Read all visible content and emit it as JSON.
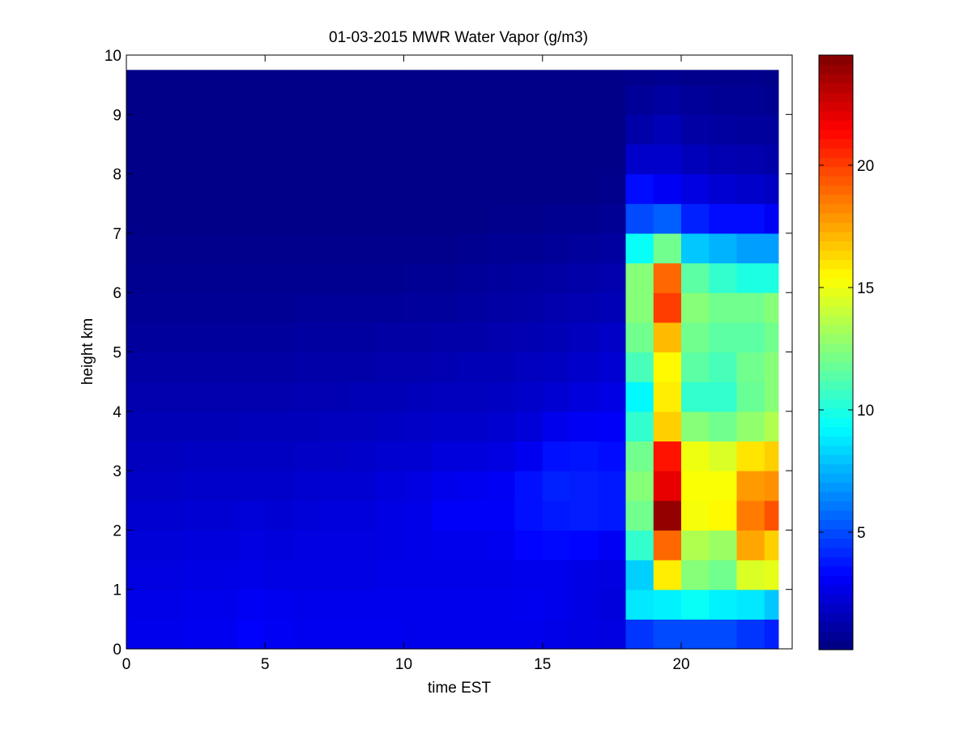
{
  "chart_data": {
    "type": "heatmap",
    "title": "01-03-2015 MWR Water Vapor (g/m3)",
    "xlabel": "time EST",
    "ylabel": "height km",
    "xlim": [
      0,
      24
    ],
    "ylim": [
      0,
      10
    ],
    "x_ticks": [
      "0",
      "5",
      "10",
      "15",
      "20"
    ],
    "y_ticks": [
      "0",
      "1",
      "2",
      "3",
      "4",
      "5",
      "6",
      "7",
      "8",
      "9",
      "10"
    ],
    "x_data_range": [
      0,
      23.5
    ],
    "y_data_range": [
      0,
      9.75
    ],
    "colorbar": {
      "colormap": "jet",
      "clim": [
        0.2,
        24.5
      ],
      "ticks": [
        "5",
        "10",
        "15",
        "20"
      ]
    },
    "time_hours": [
      0,
      1,
      2,
      3,
      4,
      5,
      6,
      7,
      8,
      9,
      10,
      11,
      12,
      13,
      14,
      15,
      16,
      17,
      18,
      19,
      20,
      21,
      22,
      23
    ],
    "height_km": [
      0,
      0.5,
      1,
      1.5,
      2,
      2.5,
      3,
      3.5,
      4,
      4.5,
      5,
      5.5,
      6,
      6.5,
      7,
      7.5,
      8,
      8.5,
      9,
      9.5
    ],
    "water_vapor_by_hour": [
      [
        2.8,
        2.7,
        2.5,
        2.3,
        2.1,
        1.9,
        1.7,
        1.5,
        1.3,
        1.1,
        0.9,
        0.7,
        0.6,
        0.5,
        0.4,
        0.4,
        0.4,
        0.4,
        0.4,
        0.4
      ],
      [
        2.8,
        2.7,
        2.5,
        2.3,
        2.1,
        1.9,
        1.7,
        1.5,
        1.3,
        1.1,
        0.9,
        0.7,
        0.6,
        0.5,
        0.4,
        0.4,
        0.4,
        0.4,
        0.4,
        0.4
      ],
      [
        2.9,
        2.8,
        2.6,
        2.4,
        2.2,
        2.0,
        1.8,
        1.5,
        1.3,
        1.1,
        0.9,
        0.7,
        0.6,
        0.5,
        0.4,
        0.4,
        0.4,
        0.4,
        0.4,
        0.4
      ],
      [
        2.9,
        2.8,
        2.6,
        2.4,
        2.2,
        2.0,
        1.8,
        1.5,
        1.3,
        1.1,
        0.9,
        0.7,
        0.6,
        0.5,
        0.4,
        0.4,
        0.4,
        0.4,
        0.4,
        0.4
      ],
      [
        3.2,
        3.0,
        2.7,
        2.5,
        2.3,
        2.0,
        1.8,
        1.6,
        1.3,
        1.1,
        0.9,
        0.7,
        0.6,
        0.5,
        0.4,
        0.4,
        0.4,
        0.4,
        0.4,
        0.4
      ],
      [
        3.0,
        2.9,
        2.6,
        2.4,
        2.2,
        2.0,
        1.8,
        1.6,
        1.3,
        1.1,
        0.9,
        0.7,
        0.6,
        0.5,
        0.4,
        0.4,
        0.4,
        0.4,
        0.4,
        0.4
      ],
      [
        2.9,
        2.8,
        2.6,
        2.5,
        2.3,
        2.1,
        1.9,
        1.6,
        1.4,
        1.2,
        1.0,
        0.8,
        0.6,
        0.5,
        0.4,
        0.4,
        0.4,
        0.4,
        0.4,
        0.4
      ],
      [
        2.9,
        2.8,
        2.6,
        2.5,
        2.4,
        2.2,
        1.9,
        1.7,
        1.4,
        1.2,
        1.0,
        0.8,
        0.6,
        0.5,
        0.4,
        0.4,
        0.4,
        0.4,
        0.4,
        0.4
      ],
      [
        2.9,
        2.8,
        2.6,
        2.5,
        2.4,
        2.2,
        2.0,
        1.7,
        1.5,
        1.2,
        1.0,
        0.8,
        0.6,
        0.5,
        0.4,
        0.4,
        0.4,
        0.4,
        0.4,
        0.4
      ],
      [
        2.9,
        2.8,
        2.7,
        2.6,
        2.6,
        2.4,
        2.1,
        1.8,
        1.5,
        1.3,
        1.1,
        0.8,
        0.6,
        0.5,
        0.4,
        0.4,
        0.4,
        0.4,
        0.4,
        0.4
      ],
      [
        2.8,
        2.8,
        2.7,
        2.7,
        2.7,
        2.5,
        2.2,
        1.9,
        1.6,
        1.3,
        1.1,
        0.9,
        0.7,
        0.5,
        0.4,
        0.4,
        0.4,
        0.4,
        0.4,
        0.4
      ],
      [
        2.8,
        2.8,
        2.7,
        2.8,
        3.1,
        2.8,
        2.4,
        2.0,
        1.7,
        1.4,
        1.2,
        0.9,
        0.7,
        0.5,
        0.4,
        0.4,
        0.4,
        0.4,
        0.4,
        0.4
      ],
      [
        2.8,
        2.8,
        2.7,
        2.8,
        3.1,
        2.9,
        2.4,
        2.0,
        1.7,
        1.5,
        1.2,
        1.0,
        0.8,
        0.6,
        0.4,
        0.4,
        0.4,
        0.4,
        0.4,
        0.4
      ],
      [
        2.8,
        2.8,
        2.7,
        2.9,
        3.1,
        3.0,
        2.5,
        2.1,
        1.8,
        1.5,
        1.3,
        1.1,
        0.9,
        0.7,
        0.5,
        0.4,
        0.4,
        0.4,
        0.4,
        0.4
      ],
      [
        2.8,
        2.9,
        2.8,
        3.3,
        3.6,
        3.6,
        2.9,
        2.3,
        2.0,
        1.7,
        1.4,
        1.2,
        1.0,
        0.7,
        0.5,
        0.4,
        0.4,
        0.4,
        0.4,
        0.4
      ],
      [
        2.7,
        2.8,
        2.8,
        3.4,
        3.8,
        4.0,
        3.6,
        2.8,
        2.2,
        1.8,
        1.5,
        1.3,
        1.1,
        0.8,
        0.6,
        0.4,
        0.4,
        0.4,
        0.4,
        0.4
      ],
      [
        2.6,
        2.6,
        2.6,
        3.3,
        3.9,
        3.9,
        3.7,
        3.0,
        2.4,
        2.0,
        1.7,
        1.4,
        1.2,
        0.9,
        0.6,
        0.4,
        0.4,
        0.4,
        0.4,
        0.4
      ],
      [
        2.5,
        2.4,
        2.5,
        3.0,
        3.8,
        3.8,
        3.5,
        3.1,
        2.6,
        2.2,
        1.9,
        1.5,
        1.3,
        1.0,
        0.7,
        0.5,
        0.4,
        0.4,
        0.4,
        0.4
      ],
      [
        4.5,
        8.8,
        8.2,
        10.5,
        12.0,
        12.5,
        12.0,
        10.5,
        9.2,
        11.0,
        12.0,
        12.5,
        12.5,
        9.5,
        5.0,
        3.5,
        2.0,
        1.2,
        0.8,
        0.5
      ],
      [
        5.0,
        9.0,
        15.8,
        19.0,
        24.0,
        22.0,
        21.0,
        16.5,
        15.8,
        15.5,
        17.0,
        20.0,
        19.0,
        12.0,
        5.5,
        3.0,
        2.0,
        1.5,
        1.0,
        0.6
      ],
      [
        5.0,
        9.5,
        12.5,
        13.5,
        15.2,
        15.3,
        15.0,
        12.5,
        10.5,
        11.5,
        12.0,
        12.5,
        11.5,
        8.0,
        4.0,
        2.5,
        1.6,
        1.1,
        0.8,
        0.5
      ],
      [
        5.0,
        9.0,
        12.0,
        13.0,
        15.5,
        15.3,
        14.5,
        12.0,
        10.5,
        11.0,
        11.5,
        12.0,
        10.5,
        7.5,
        3.5,
        2.2,
        1.4,
        1.0,
        0.7,
        0.5
      ],
      [
        4.5,
        8.8,
        14.5,
        17.5,
        18.5,
        17.8,
        16.0,
        12.8,
        11.8,
        12.0,
        11.5,
        12.0,
        10.0,
        7.0,
        3.5,
        2.0,
        1.3,
        0.9,
        0.7,
        0.5
      ],
      [
        4.0,
        8.0,
        14.8,
        16.5,
        19.5,
        18.0,
        16.5,
        13.5,
        12.5,
        12.5,
        12.0,
        12.5,
        10.0,
        7.0,
        3.0,
        1.8,
        1.2,
        0.9,
        0.6,
        0.4
      ]
    ]
  }
}
